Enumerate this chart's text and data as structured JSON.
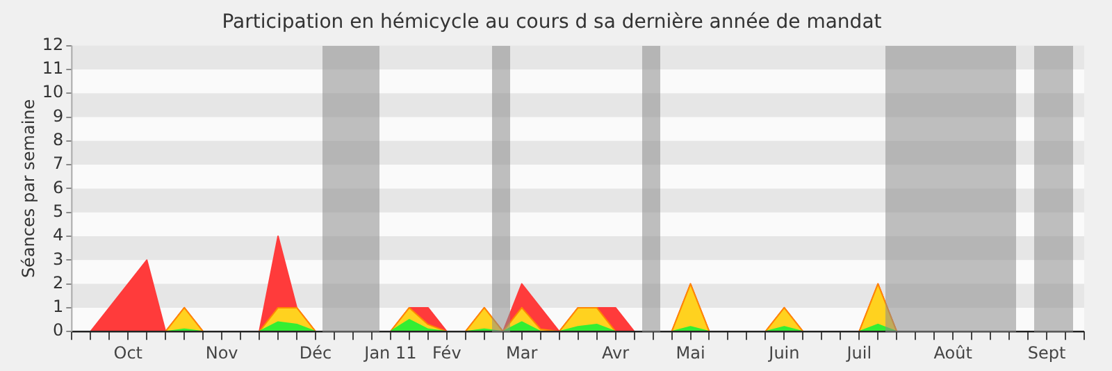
{
  "chart_data": {
    "type": "area",
    "title": "Participation en hémicycle au cours d sa dernière année de mandat",
    "ylabel": "Séances par semaine",
    "stacked": true,
    "legend": false,
    "categories": [
      null,
      null,
      null,
      "Oct",
      null,
      null,
      null,
      null,
      "Nov",
      null,
      null,
      null,
      null,
      "Déc",
      null,
      null,
      null,
      "Jan 11",
      null,
      null,
      "Fév",
      null,
      null,
      null,
      "Mar",
      null,
      null,
      null,
      null,
      "Avr",
      null,
      null,
      null,
      "Mai",
      null,
      null,
      null,
      null,
      "Juin",
      null,
      null,
      null,
      "Juil",
      null,
      null,
      null,
      null,
      "Août",
      null,
      null,
      null,
      null,
      "Sept",
      null,
      null
    ],
    "ylim": [
      0,
      12
    ],
    "yticks": [
      0,
      1,
      2,
      3,
      4,
      5,
      6,
      7,
      8,
      9,
      10,
      11,
      12
    ],
    "series": [
      {
        "color": "#33ee33",
        "values": [
          0,
          0,
          0,
          0,
          0,
          0,
          0.1,
          0,
          0,
          0,
          0,
          0.4,
          0.3,
          0,
          0,
          0,
          0,
          0,
          0.5,
          0.1,
          0,
          0,
          0.1,
          0,
          0.4,
          0,
          0,
          0.2,
          0.3,
          0,
          0,
          0,
          0,
          0.2,
          0,
          0,
          0,
          0,
          0.2,
          0,
          0,
          0,
          0,
          0.3,
          0,
          0,
          0,
          0,
          0,
          0,
          0,
          0,
          0,
          0,
          0
        ]
      },
      {
        "color": "#ffd21f",
        "values": [
          0,
          0,
          0,
          0,
          0,
          0,
          0.9,
          0,
          0,
          0,
          0,
          0.6,
          0.7,
          0,
          0,
          0,
          0,
          0,
          0.5,
          0.2,
          0,
          0,
          0.9,
          0,
          0.6,
          0.1,
          0,
          0.8,
          0.7,
          0,
          0,
          0,
          0,
          1.8,
          0,
          0,
          0,
          0,
          0.8,
          0,
          0,
          0,
          0,
          1.7,
          0,
          0,
          0,
          0,
          0,
          0,
          0,
          0,
          0,
          0,
          0
        ]
      },
      {
        "color": "#ff3b3b",
        "values": [
          0,
          0,
          1,
          2,
          3,
          0,
          0,
          0,
          0,
          0,
          0,
          3,
          0,
          0,
          0,
          0,
          0,
          0,
          0,
          0.7,
          0,
          0,
          0,
          0,
          1,
          0.9,
          0,
          0,
          0,
          1,
          0,
          0,
          0,
          0,
          0,
          0,
          0,
          0,
          0,
          0,
          0,
          0,
          0,
          0,
          0,
          0,
          0,
          0,
          0,
          0,
          0,
          0,
          0,
          0,
          0
        ]
      }
    ]
  }
}
